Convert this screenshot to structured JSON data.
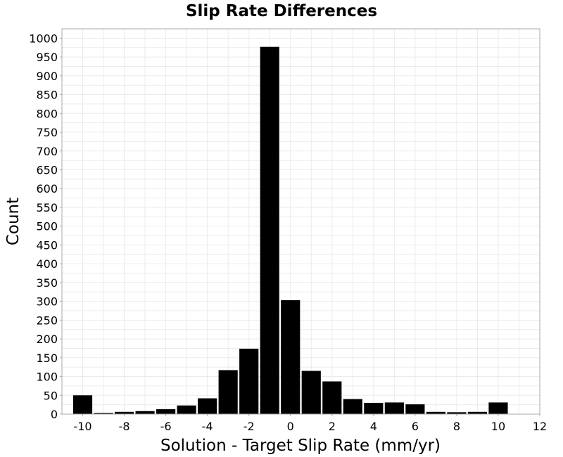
{
  "chart_data": {
    "type": "bar",
    "title": "Slip Rate Differences",
    "xlabel": "Solution - Target Slip Rate (mm/yr)",
    "ylabel": "Count",
    "xlim": [
      -11,
      12
    ],
    "ylim": [
      0,
      1025
    ],
    "xticks": [
      -10,
      -8,
      -6,
      -4,
      -2,
      0,
      2,
      4,
      6,
      8,
      10,
      12
    ],
    "yticks": [
      0,
      50,
      100,
      150,
      200,
      250,
      300,
      350,
      400,
      450,
      500,
      550,
      600,
      650,
      700,
      750,
      800,
      850,
      900,
      950,
      1000
    ],
    "bin_width": 1,
    "grid": true,
    "legend": "none",
    "bar_color": "#000000",
    "bins": [
      {
        "x": -10,
        "value": 50
      },
      {
        "x": -9,
        "value": 3
      },
      {
        "x": -8,
        "value": 6
      },
      {
        "x": -7,
        "value": 8
      },
      {
        "x": -6,
        "value": 13
      },
      {
        "x": -5,
        "value": 23
      },
      {
        "x": -4,
        "value": 42
      },
      {
        "x": -3,
        "value": 117
      },
      {
        "x": -2,
        "value": 174
      },
      {
        "x": -1,
        "value": 977
      },
      {
        "x": 0,
        "value": 303
      },
      {
        "x": 1,
        "value": 115
      },
      {
        "x": 2,
        "value": 87
      },
      {
        "x": 3,
        "value": 40
      },
      {
        "x": 4,
        "value": 30
      },
      {
        "x": 5,
        "value": 31
      },
      {
        "x": 6,
        "value": 26
      },
      {
        "x": 7,
        "value": 6
      },
      {
        "x": 8,
        "value": 5
      },
      {
        "x": 9,
        "value": 6
      },
      {
        "x": 10,
        "value": 31
      }
    ]
  }
}
